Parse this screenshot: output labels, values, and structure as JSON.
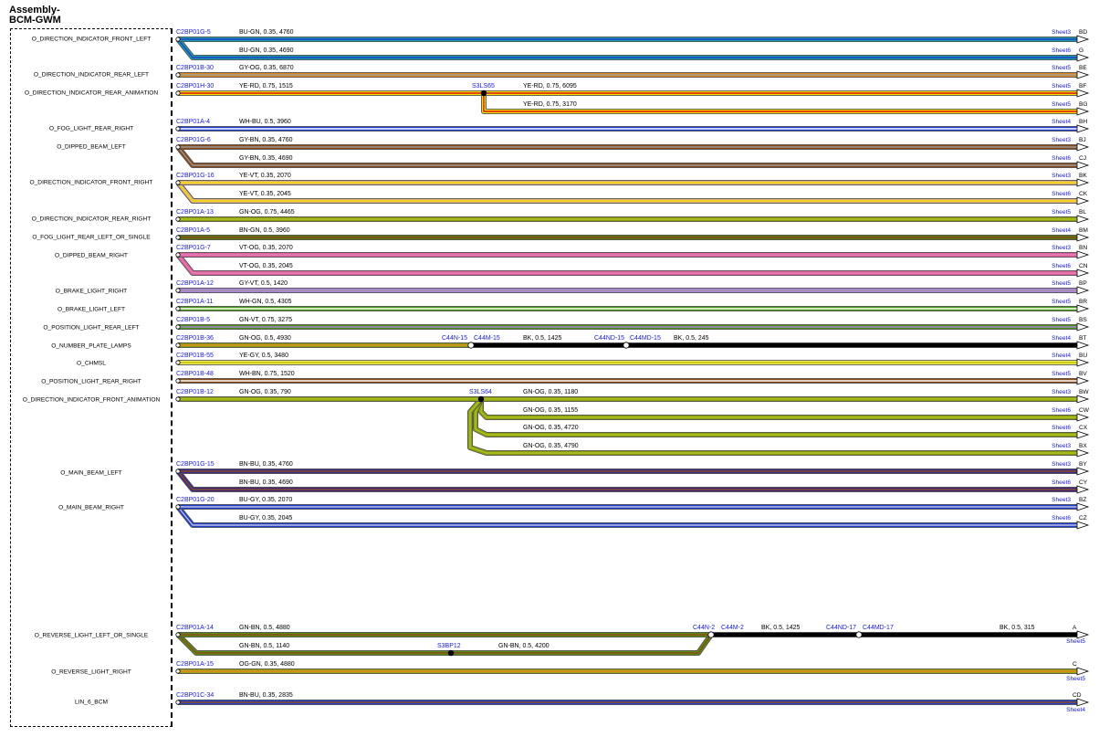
{
  "assembly": {
    "line1": "Assembly-",
    "line2": "BCM-GWM"
  },
  "colors": {
    "BU": "#1f3fd0",
    "GN": "#4a9a1a",
    "GY": "#9a9a9a",
    "OG": "#e08a1e",
    "YE": "#f2e000",
    "RD": "#e01010",
    "WH": "#ffffff",
    "BN": "#8a4b1a",
    "VT": "#b080e0",
    "BK": "#000000",
    "wire_teal": "#1a9aa5",
    "wire_pink": "#e060a0",
    "wire_olive": "#8aa010",
    "link_blue": "#1a1acc"
  },
  "signals": [
    "O_DIRECTION_INDICATOR_FRONT_LEFT",
    "O_DIRECTION_INDICATOR_REAR_LEFT",
    "O_DIRECTION_INDICATOR_REAR_ANIMATION",
    "O_FOG_LIGHT_REAR_RIGHT",
    "O_DIPPED_BEAM_LEFT",
    "O_DIRECTION_INDICATOR_FRONT_RIGHT",
    "O_DIRECTION_INDICATOR_REAR_RIGHT",
    "O_FOG_LIGHT_REAR_LEFT_OR_SINGLE",
    "O_DIPPED_BEAM_RIGHT",
    "O_BRAKE_LIGHT_RIGHT",
    "O_BRAKE_LIGHT_LEFT",
    "O_POSITION_LIGHT_REAR_LEFT",
    "O_NUMBER_PLATE_LAMPS",
    "O_CHMSL",
    "O_POSITION_LIGHT_REAR_RIGHT",
    "O_DIRECTION_INDICATOR_FRONT_ANIMATION",
    "O_MAIN_BEAM_LEFT",
    "O_MAIN_BEAM_RIGHT",
    "O_REVERSE_LIGHT_LEFT_OR_SINGLE",
    "O_REVERSE_LIGHT_RIGHT",
    "LIN_6_BCM"
  ],
  "wires": [
    {
      "pin": "C2BP01G-5",
      "spec": "BU-GN, 0.35, 4760",
      "sheet": "Sheet3",
      "ref": "BD",
      "c1": "#1a9aa5",
      "c2": "#1f3fd0"
    },
    {
      "spec": "BU-GN, 0.35, 4690",
      "sheet": "Sheet6",
      "ref": "G",
      "c1": "#1a9aa5",
      "c2": "#1f3fd0"
    },
    {
      "pin": "C2BP01B-30",
      "spec": "GY-OG, 0.35, 6870",
      "sheet": "Sheet5",
      "ref": "BE",
      "c1": "#e08a1e",
      "c2": "#9a9a9a"
    },
    {
      "pin": "C2BP01H-30",
      "spec": "YE-RD, 0.75, 1515",
      "splice": "S3LS65",
      "spec2": "YE-RD, 0.75, 6095",
      "sheet": "Sheet5",
      "ref": "BF",
      "c1": "#f2e000",
      "c2": "#e01010"
    },
    {
      "spec": "YE-RD, 0.75, 3170",
      "sheet": "Sheet5",
      "ref": "BG",
      "c1": "#f2e000",
      "c2": "#e01010"
    },
    {
      "pin": "C2BP01A-4",
      "spec": "WH-BU, 0.5, 3960",
      "sheet": "Sheet4",
      "ref": "BH",
      "c1": "#1f3fd0",
      "c2": "#ffffff"
    },
    {
      "pin": "C2BP01G-6",
      "spec": "GY-BN, 0.35, 4760",
      "sheet": "Sheet3",
      "ref": "BJ",
      "c1": "#8a4b1a",
      "c2": "#9a9a9a"
    },
    {
      "spec": "GY-BN, 0.35, 4690",
      "sheet": "Sheet6",
      "ref": "CJ",
      "c1": "#8a4b1a",
      "c2": "#9a9a9a"
    },
    {
      "pin": "C2BP01G-16",
      "spec": "YE-VT, 0.35, 2070",
      "sheet": "Sheet3",
      "ref": "BK",
      "c1": "#e0b080",
      "c2": "#f2e000"
    },
    {
      "spec": "YE-VT, 0.35, 2045",
      "sheet": "Sheet6",
      "ref": "CK",
      "c1": "#e0b080",
      "c2": "#f2e000"
    },
    {
      "pin": "C2BP01A-13",
      "spec": "GN-OG, 0.75, 4465",
      "sheet": "Sheet5",
      "ref": "BL",
      "c1": "#8aa010",
      "c2": "#b0c020"
    },
    {
      "pin": "C2BP01A-5",
      "spec": "BN-GN, 0.5, 3960",
      "sheet": "Sheet4",
      "ref": "BM",
      "c1": "#5a7a10",
      "c2": "#8a4b1a"
    },
    {
      "pin": "C2BP01G-7",
      "spec": "VT-OG, 0.35, 2070",
      "sheet": "Sheet3",
      "ref": "BN",
      "c1": "#e060a0",
      "c2": "#e080b0"
    },
    {
      "spec": "VT-OG, 0.35, 2045",
      "sheet": "Sheet6",
      "ref": "CN",
      "c1": "#e060a0",
      "c2": "#e080b0"
    },
    {
      "pin": "C2BP01A-12",
      "spec": "GY-VT, 0.5, 1420",
      "sheet": "Sheet5",
      "ref": "BP",
      "c1": "#b080e0",
      "c2": "#9a9a9a"
    },
    {
      "pin": "C2BP01A-11",
      "spec": "WH-GN, 0.5, 4305",
      "sheet": "Sheet5",
      "ref": "BR",
      "c1": "#4a9a1a",
      "c2": "#ffffff"
    },
    {
      "pin": "C2BP01B-5",
      "spec": "GN-VT, 0.75, 3275",
      "sheet": "Sheet5",
      "ref": "BS",
      "c1": "#4a9a1a",
      "c2": "#b080e0"
    },
    {
      "pin": "C2BP01B-36",
      "spec": "GN-OG, 0.5, 4930",
      "conn1": "C44N-15",
      "conn2": "C44M-15",
      "spec2": "BK, 0.5, 1425",
      "conn3": "C44ND-15",
      "conn4": "C44MD-15",
      "spec3": "BK, 0.5, 245",
      "sheet": "Sheet4",
      "ref": "BT",
      "c1": "#8aa010",
      "c2": "#e08a1e"
    },
    {
      "pin": "C2BP01B-55",
      "spec": "YE-GY, 0.5, 3480",
      "sheet": "Sheet4",
      "ref": "BU",
      "c1": "#f2f060",
      "c2": "#c0c000"
    },
    {
      "pin": "C2BP01B-48",
      "spec": "WH-BN, 0.75, 1520",
      "sheet": "Sheet5",
      "ref": "BV",
      "c1": "#8a4b1a",
      "c2": "#ffffff"
    },
    {
      "pin": "C2BP01B-12",
      "spec": "GN-OG, 0.35, 790",
      "splice": "S3LS64",
      "spec2": "GN-OG, 0.35, 1180",
      "sheet": "Sheet3",
      "ref": "BW",
      "c1": "#8aa010",
      "c2": "#b0c020"
    },
    {
      "spec": "GN-OG, 0.35, 1155",
      "sheet": "Sheet6",
      "ref": "CW",
      "c1": "#8aa010",
      "c2": "#b0c020"
    },
    {
      "spec": "GN-OG, 0.35, 4720",
      "sheet": "Sheet6",
      "ref": "CX",
      "c1": "#8aa010",
      "c2": "#b0c020"
    },
    {
      "spec": "GN-OG, 0.35, 4790",
      "sheet": "Sheet3",
      "ref": "BX",
      "c1": "#8aa010",
      "c2": "#b0c020"
    },
    {
      "pin": "C2BP01G-15",
      "spec": "BN-BU, 0.35, 4760",
      "sheet": "Sheet3",
      "ref": "BY",
      "c1": "#3a2a90",
      "c2": "#8a4b1a"
    },
    {
      "spec": "BN-BU, 0.35, 4690",
      "sheet": "Sheet6",
      "ref": "CY",
      "c1": "#3a2a90",
      "c2": "#8a4b1a"
    },
    {
      "pin": "C2BP01G-20",
      "spec": "BU-GY, 0.35, 2070",
      "sheet": "Sheet3",
      "ref": "BZ",
      "c1": "#1f3fd0",
      "c2": "#c0c0e0"
    },
    {
      "spec": "BU-GY, 0.35, 2045",
      "sheet": "Sheet6",
      "ref": "CZ",
      "c1": "#1f3fd0",
      "c2": "#c0c0e0"
    },
    {
      "pin": "C2BP01A-14",
      "spec": "GN-BN, 0.5, 4880",
      "conn1": "C44N-2",
      "conn2": "C44M-2",
      "spec2": "BK, 0.5, 1425",
      "conn3": "C44ND-17",
      "conn4": "C44MD-17",
      "spec3": "BK, 0.5, 315",
      "ref": "A",
      "sheet": "Sheet5",
      "c1": "#5a8a10",
      "c2": "#8a4b1a"
    },
    {
      "spec": "GN-BN, 0.5, 1140",
      "splice": "S3BP12",
      "spec2": "GN-BN, 0.5, 4200",
      "c1": "#5a8a10",
      "c2": "#8a4b1a"
    },
    {
      "pin": "C2BP01A-15",
      "spec": "OG-GN, 0.35, 4880",
      "ref": "C",
      "sheet": "Sheet5",
      "c1": "#a0a010",
      "c2": "#e08a1e"
    },
    {
      "pin": "C2BP01C-34",
      "spec": "BN-BU, 0.35, 2835",
      "ref": "CD",
      "sheet": "Sheet4",
      "c1": "#1f3fd0",
      "c2": "#8a4b1a"
    }
  ]
}
